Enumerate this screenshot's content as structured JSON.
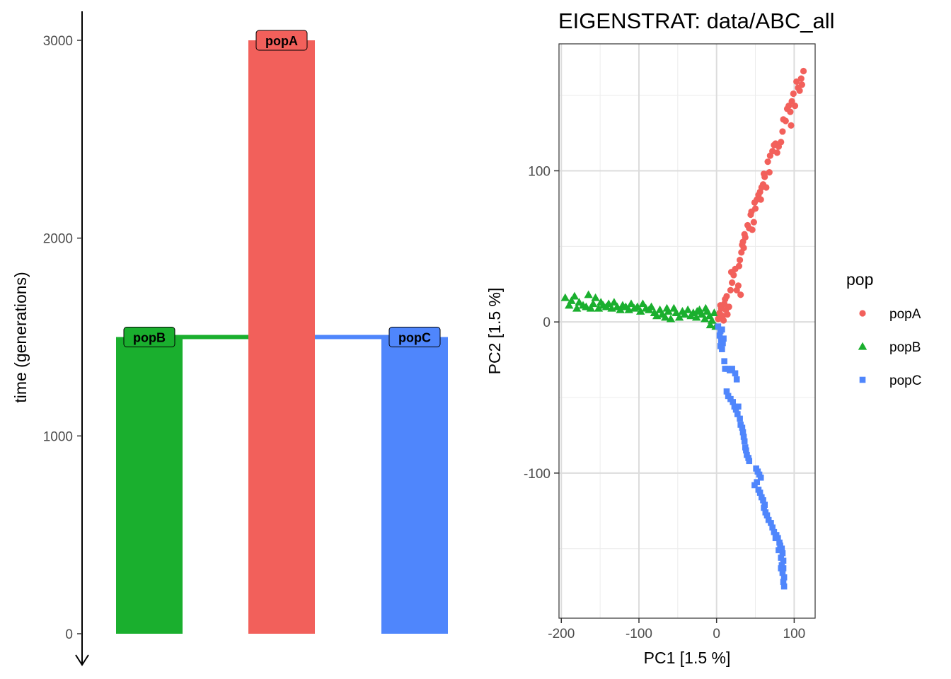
{
  "chart_data": [
    {
      "type": "bar",
      "ylabel": "time (generations)",
      "ylim": [
        0,
        3000
      ],
      "yticks": [
        "0",
        "1000",
        "2000",
        "3000"
      ],
      "populations": [
        {
          "name": "popB",
          "start": 1500,
          "end": 0,
          "color": "#1aaf2e"
        },
        {
          "name": "popA",
          "start": 3000,
          "end": 0,
          "color": "#f2605b"
        },
        {
          "name": "popC",
          "start": 1500,
          "end": 0,
          "color": "#4f86fc"
        }
      ],
      "splits": [
        {
          "from": "popA",
          "to": "popB",
          "time": 1500
        },
        {
          "from": "popA",
          "to": "popC",
          "time": 1500
        }
      ]
    },
    {
      "type": "scatter",
      "title": "EIGENSTRAT: data/ABC_all",
      "xlabel": "PC1 [1.5 %]",
      "ylabel": "PC2 [1.5 %]",
      "xlim": [
        -203,
        127
      ],
      "ylim": [
        -196,
        184
      ],
      "xticks": [
        "-200",
        "-100",
        "0",
        "100"
      ],
      "yticks": [
        "-100",
        "0",
        "100"
      ],
      "legend": {
        "title": "pop",
        "position": "right"
      },
      "series": [
        {
          "name": "popA",
          "color": "#f2605b",
          "marker": "circle",
          "points": [
            [
              2,
              2
            ],
            [
              4,
              6
            ],
            [
              6,
              9
            ],
            [
              8,
              4
            ],
            [
              10,
              12
            ],
            [
              12,
              8
            ],
            [
              14,
              5
            ],
            [
              5,
              11
            ],
            [
              9,
              1
            ],
            [
              11,
              15
            ],
            [
              16,
              10
            ],
            [
              13,
              17
            ],
            [
              18,
              21
            ],
            [
              20,
              26
            ],
            [
              19,
              33
            ],
            [
              22,
              31
            ],
            [
              24,
              35
            ],
            [
              26,
              21
            ],
            [
              28,
              24
            ],
            [
              29,
              37
            ],
            [
              31,
              18
            ],
            [
              30,
              41
            ],
            [
              32,
              46
            ],
            [
              33,
              51
            ],
            [
              35,
              49
            ],
            [
              37,
              56
            ],
            [
              34,
              53
            ],
            [
              40,
              64
            ],
            [
              44,
              71
            ],
            [
              46,
              61
            ],
            [
              48,
              66
            ],
            [
              45,
              73
            ],
            [
              50,
              75
            ],
            [
              49,
              79
            ],
            [
              52,
              81
            ],
            [
              54,
              84
            ],
            [
              56,
              86
            ],
            [
              58,
              89
            ],
            [
              60,
              91
            ],
            [
              62,
              96
            ],
            [
              61,
              98
            ],
            [
              64,
              89
            ],
            [
              66,
              106
            ],
            [
              69,
              110
            ],
            [
              72,
              113
            ],
            [
              74,
              117
            ],
            [
              76,
              118
            ],
            [
              78,
              112
            ],
            [
              80,
              116
            ],
            [
              83,
              119
            ],
            [
              86,
              134
            ],
            [
              89,
              133
            ],
            [
              91,
              141
            ],
            [
              93,
              143
            ],
            [
              95,
              139
            ],
            [
              97,
              146
            ],
            [
              99,
              151
            ],
            [
              101,
              143
            ],
            [
              103,
              159
            ],
            [
              105,
              155
            ],
            [
              107,
              153
            ],
            [
              109,
              161
            ],
            [
              110,
              157
            ],
            [
              112,
              166
            ],
            [
              96,
              130
            ],
            [
              85,
              126
            ],
            [
              68,
              99
            ],
            [
              57,
              81
            ],
            [
              42,
              62
            ],
            [
              36,
              58
            ]
          ]
        },
        {
          "name": "popB",
          "color": "#1aaf2e",
          "marker": "triangle",
          "points": [
            [
              -195,
              16
            ],
            [
              -190,
              11
            ],
            [
              -187,
              14
            ],
            [
              -183,
              17
            ],
            [
              -180,
              9
            ],
            [
              -177,
              13
            ],
            [
              -172,
              11
            ],
            [
              -168,
              10
            ],
            [
              -165,
              18
            ],
            [
              -162,
              9
            ],
            [
              -159,
              12
            ],
            [
              -156,
              16
            ],
            [
              -152,
              9
            ],
            [
              -149,
              13
            ],
            [
              -146,
              11
            ],
            [
              -142,
              10
            ],
            [
              -139,
              12
            ],
            [
              -135,
              9
            ],
            [
              -132,
              13
            ],
            [
              -128,
              10
            ],
            [
              -124,
              8
            ],
            [
              -121,
              11
            ],
            [
              -117,
              10
            ],
            [
              -113,
              8
            ],
            [
              -110,
              12
            ],
            [
              -106,
              9
            ],
            [
              -102,
              10
            ],
            [
              -98,
              7
            ],
            [
              -95,
              12
            ],
            [
              -91,
              9
            ],
            [
              -87,
              8
            ],
            [
              -84,
              10
            ],
            [
              -80,
              6
            ],
            [
              -77,
              4
            ],
            [
              -73,
              8
            ],
            [
              -70,
              5
            ],
            [
              -66,
              3
            ],
            [
              -62,
              7
            ],
            [
              -59,
              2
            ],
            [
              -55,
              9
            ],
            [
              -52,
              6
            ],
            [
              -48,
              3
            ],
            [
              -44,
              7
            ],
            [
              -41,
              5
            ],
            [
              -37,
              8
            ],
            [
              -33,
              4
            ],
            [
              -30,
              6
            ],
            [
              -26,
              3
            ],
            [
              -22,
              8
            ],
            [
              -19,
              5
            ],
            [
              -15,
              2
            ],
            [
              -12,
              7
            ],
            [
              -9,
              4
            ],
            [
              -6,
              1
            ],
            [
              -3,
              6
            ],
            [
              -1,
              -3
            ],
            [
              -8,
              -2
            ],
            [
              -14,
              9
            ],
            [
              -25,
              7
            ],
            [
              -64,
              9
            ]
          ]
        },
        {
          "name": "popC",
          "color": "#4f86fc",
          "marker": "square",
          "points": [
            [
              2,
              -3
            ],
            [
              5,
              -6
            ],
            [
              7,
              -5
            ],
            [
              4,
              -9
            ],
            [
              6,
              -12
            ],
            [
              8,
              -14
            ],
            [
              5,
              -16
            ],
            [
              7,
              -18
            ],
            [
              9,
              -11
            ],
            [
              10,
              -26
            ],
            [
              11,
              -31
            ],
            [
              14,
              -31
            ],
            [
              17,
              -32
            ],
            [
              20,
              -31
            ],
            [
              24,
              -34
            ],
            [
              26,
              -38
            ],
            [
              13,
              -46
            ],
            [
              15,
              -49
            ],
            [
              18,
              -51
            ],
            [
              21,
              -53
            ],
            [
              23,
              -56
            ],
            [
              25,
              -58
            ],
            [
              27,
              -61
            ],
            [
              28,
              -56
            ],
            [
              30,
              -64
            ],
            [
              31,
              -68
            ],
            [
              33,
              -70
            ],
            [
              34,
              -73
            ],
            [
              35,
              -76
            ],
            [
              36,
              -79
            ],
            [
              37,
              -83
            ],
            [
              38,
              -85
            ],
            [
              39,
              -88
            ],
            [
              41,
              -90
            ],
            [
              42,
              -92
            ],
            [
              51,
              -97
            ],
            [
              53,
              -99
            ],
            [
              55,
              -101
            ],
            [
              57,
              -103
            ],
            [
              52,
              -106
            ],
            [
              49,
              -108
            ],
            [
              54,
              -111
            ],
            [
              56,
              -113
            ],
            [
              58,
              -116
            ],
            [
              60,
              -118
            ],
            [
              62,
              -121
            ],
            [
              61,
              -123
            ],
            [
              63,
              -126
            ],
            [
              65,
              -128
            ],
            [
              67,
              -131
            ],
            [
              70,
              -133
            ],
            [
              72,
              -136
            ],
            [
              74,
              -139
            ],
            [
              77,
              -141
            ],
            [
              79,
              -143
            ],
            [
              81,
              -146
            ],
            [
              82,
              -148
            ],
            [
              84,
              -150
            ],
            [
              85,
              -153
            ],
            [
              83,
              -156
            ],
            [
              86,
              -158
            ],
            [
              84,
              -161
            ],
            [
              86,
              -163
            ],
            [
              85,
              -166
            ],
            [
              87,
              -169
            ],
            [
              86,
              -172
            ],
            [
              87,
              -175
            ],
            [
              83,
              -163
            ],
            [
              80,
              -151
            ],
            [
              76,
              -143
            ]
          ]
        }
      ]
    }
  ]
}
